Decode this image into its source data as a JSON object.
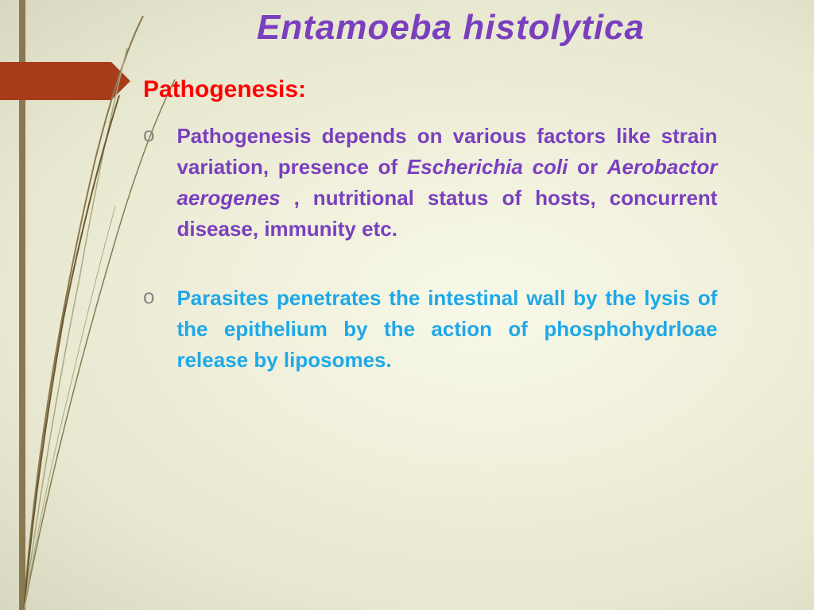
{
  "slide": {
    "title": "Entamoeba histolytica",
    "subtitle": "Pathogenesis:",
    "bullets": [
      {
        "color": "purple",
        "segments": [
          {
            "text": " Pathogenesis depends on various factors like strain variation, presence of ",
            "italic": false
          },
          {
            "text": "Escherichia coli",
            "italic": true
          },
          {
            "text": " or ",
            "italic": false
          },
          {
            "text": "Aerobactor aerogenes",
            "italic": true
          },
          {
            "text": " , nutritional status of hosts, concurrent disease, immunity etc.",
            "italic": false
          }
        ]
      },
      {
        "color": "blue",
        "segments": [
          {
            "text": " Parasites penetrates the intestinal wall by the lysis of the epithelium by the action of phosphohydrloae release by liposomes.",
            "italic": false
          }
        ]
      }
    ]
  },
  "style": {
    "background_gradient_inner": "#f8f8e8",
    "background_gradient_outer": "#d8d8c0",
    "left_border_color": "#8a7850",
    "tab_color": "#a83c1a",
    "title_color": "#7a3fbf",
    "title_fontsize": 44,
    "subtitle_color": "#ff0000",
    "subtitle_fontsize": 30,
    "body_fontsize": 26,
    "purple": "#7a3fbf",
    "blue": "#1ea8e8",
    "grass_colors": [
      "#8a7850",
      "#aaa880",
      "#6a5830"
    ]
  }
}
